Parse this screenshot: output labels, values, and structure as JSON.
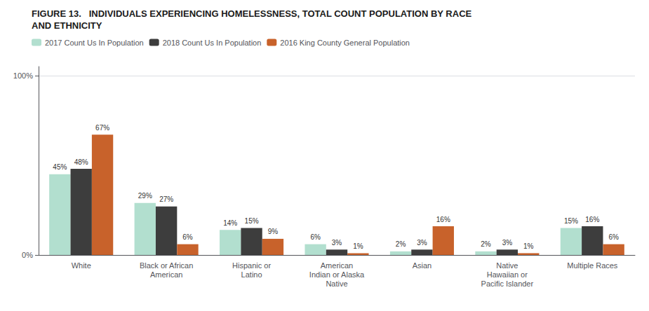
{
  "chart_data": {
    "type": "bar",
    "title": "FIGURE 13.   INDIVIDUALS EXPERIENCING HOMELESSNESS, TOTAL COUNT POPULATION BY RACE\nAND ETHNICITY",
    "categories": [
      "White",
      "Black or African\nAmerican",
      "Hispanic or\nLatino",
      "American\nIndian or Alaska\nNative",
      "Asian",
      "Native\nHawaiian or\nPacific Islander",
      "Multiple Races"
    ],
    "series": [
      {
        "name": "2017 Count Us In Population",
        "color": "#b2dfcf",
        "values": [
          45,
          29,
          14,
          6,
          2,
          2,
          15
        ],
        "value_labels": [
          "45%",
          "29%",
          "14%",
          "6%",
          "2%",
          "2%",
          "15%"
        ]
      },
      {
        "name": "2018 Count Us In Population",
        "color": "#3d3d3d",
        "values": [
          48,
          27,
          15,
          3,
          3,
          3,
          16
        ],
        "value_labels": [
          "48%",
          "27%",
          "15%",
          "3%",
          "3%",
          "3%",
          "16%"
        ]
      },
      {
        "name": "2016 King County General Population",
        "color": "#c8622b",
        "values": [
          67,
          6,
          9,
          1,
          16,
          1,
          6
        ],
        "value_labels": [
          "67%",
          "6%",
          "9%",
          "1%",
          "16%",
          "1%",
          "6%"
        ]
      }
    ],
    "ylim": [
      0,
      105
    ],
    "yticks": [
      {
        "value": 0,
        "label": "0%"
      },
      {
        "value": 100,
        "label": "100%"
      }
    ],
    "grid": true,
    "legend": "upper left",
    "data_labels": true
  }
}
